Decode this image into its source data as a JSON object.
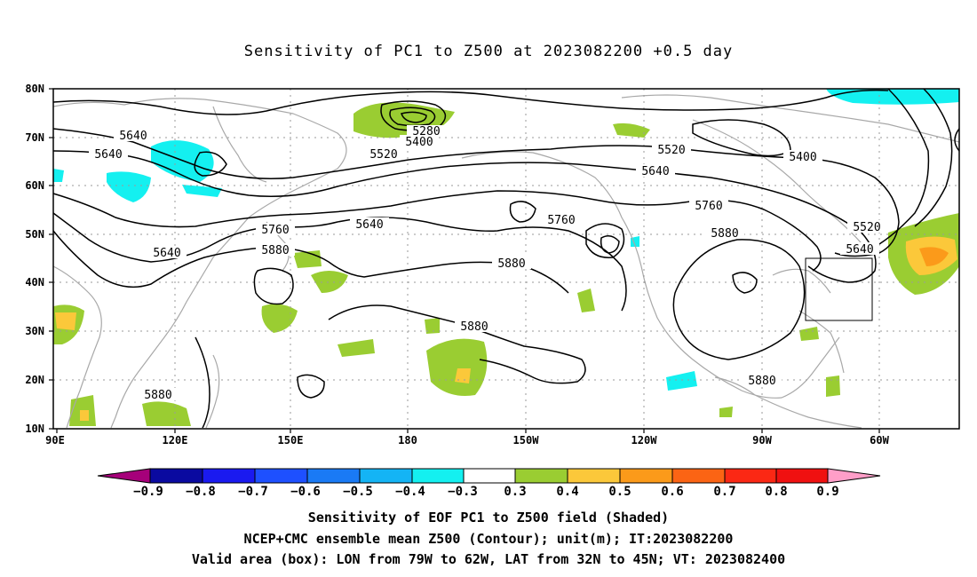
{
  "title": "Sensitivity of PC1 to Z500 at 2023082200 +0.5 day",
  "map": {
    "lat_labels": [
      "80N",
      "70N",
      "60N",
      "50N",
      "40N",
      "30N",
      "20N",
      "10N"
    ],
    "lon_labels": [
      "90E",
      "120E",
      "150E",
      "180",
      "150W",
      "120W",
      "90W",
      "60W"
    ],
    "contour_labels": [
      {
        "text": "5640"
      },
      {
        "text": "5640"
      },
      {
        "text": "5640"
      },
      {
        "text": "5640"
      },
      {
        "text": "5640"
      },
      {
        "text": "5640"
      },
      {
        "text": "5280"
      },
      {
        "text": "5400"
      },
      {
        "text": "5400"
      },
      {
        "text": "5520"
      },
      {
        "text": "5520"
      },
      {
        "text": "5520"
      },
      {
        "text": "5760"
      },
      {
        "text": "5760"
      },
      {
        "text": "5760"
      },
      {
        "text": "5880"
      },
      {
        "text": "5880"
      },
      {
        "text": "5880"
      },
      {
        "text": "5880"
      },
      {
        "text": "5880"
      },
      {
        "text": "5880"
      }
    ]
  },
  "valid_box": {
    "lon_from": "79W",
    "lon_to": "62W",
    "lat_from": "32N",
    "lat_to": "45N"
  },
  "colorbar": {
    "colors": [
      "#a6007a",
      "#0a0aa0",
      "#1a1af0",
      "#1e50ff",
      "#1a7af5",
      "#14b4f5",
      "#14f0f0",
      "#ffffff",
      "#9acd32",
      "#fbc83a",
      "#fb9a1a",
      "#fb6414",
      "#fb2814",
      "#f01010",
      "#ff9ec8"
    ],
    "labels": [
      "−0.9",
      "−0.8",
      "−0.7",
      "−0.6",
      "−0.5",
      "−0.4",
      "−0.3",
      "0.3",
      "0.4",
      "0.5",
      "0.6",
      "0.7",
      "0.8",
      "0.9"
    ]
  },
  "captions": {
    "line1": "Sensitivity of EOF PC1 to Z500 field (Shaded)",
    "line2": "NCEP+CMC ensemble mean Z500 (Contour); unit(m); IT:2023082200",
    "line3": "Valid area (box): LON from 79W to 62W, LAT from 32N to 45N; VT: 2023082400"
  }
}
